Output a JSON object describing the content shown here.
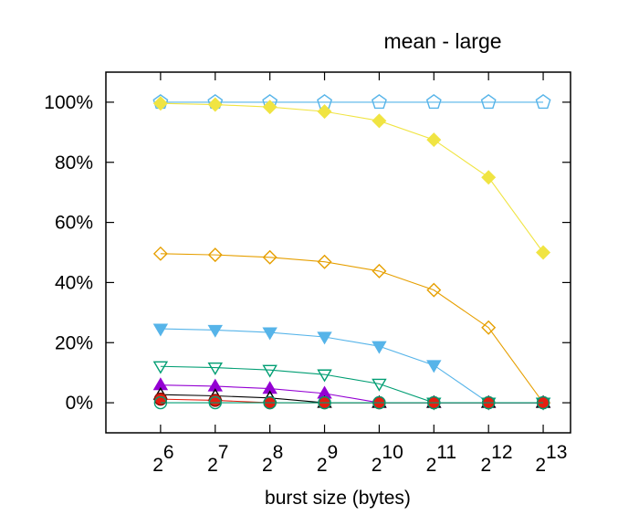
{
  "chart_data": {
    "type": "line",
    "title": "mean - large",
    "xlabel": "burst size (bytes)",
    "ylabel": "",
    "x": [
      6,
      7,
      8,
      9,
      10,
      11,
      12,
      13
    ],
    "x_tick_labels": [
      {
        "base": "2",
        "exp": "6"
      },
      {
        "base": "2",
        "exp": "7"
      },
      {
        "base": "2",
        "exp": "8"
      },
      {
        "base": "2",
        "exp": "9"
      },
      {
        "base": "2",
        "exp": "10"
      },
      {
        "base": "2",
        "exp": "11"
      },
      {
        "base": "2",
        "exp": "12"
      },
      {
        "base": "2",
        "exp": "13"
      }
    ],
    "y_ticks": [
      0,
      20,
      40,
      60,
      80,
      100
    ],
    "y_tick_labels": [
      "0%",
      "20%",
      "40%",
      "60%",
      "80%",
      "100%"
    ],
    "xlim": [
      5,
      13.5
    ],
    "ylim": [
      -10,
      110
    ],
    "grid": false,
    "series": [
      {
        "color": "#56b4e9",
        "marker": "pentagon-open",
        "values": [
          100,
          100,
          100,
          100,
          100,
          100,
          100,
          100
        ]
      },
      {
        "color": "#f0e442",
        "marker": "diamond-filled",
        "values": [
          99.6,
          99.2,
          98.4,
          96.9,
          93.8,
          87.5,
          75,
          50
        ]
      },
      {
        "color": "#e69f00",
        "marker": "diamond-open",
        "values": [
          49.6,
          49.2,
          48.4,
          46.9,
          43.8,
          37.5,
          25,
          0
        ]
      },
      {
        "color": "#56b4e9",
        "marker": "triangle-down-filled",
        "values": [
          24.6,
          24.2,
          23.4,
          21.9,
          18.8,
          12.5,
          0,
          0
        ]
      },
      {
        "color": "#009e73",
        "marker": "triangle-down-open",
        "values": [
          12.1,
          11.7,
          10.9,
          9.4,
          6.3,
          0,
          0,
          0
        ]
      },
      {
        "color": "#9400d3",
        "marker": "triangle-up-filled",
        "values": [
          5.9,
          5.5,
          4.7,
          3.1,
          0,
          0,
          0,
          0
        ]
      },
      {
        "color": "#000000",
        "marker": "triangle-up-open",
        "values": [
          2.7,
          2.3,
          1.6,
          0,
          0,
          0,
          0,
          0
        ]
      },
      {
        "color": "#e51e10",
        "marker": "circle-filled",
        "values": [
          1.2,
          0.8,
          0,
          0,
          0,
          0,
          0,
          0
        ]
      },
      {
        "color": "#009e73",
        "marker": "circle-open",
        "values": [
          0,
          0,
          0,
          0,
          0,
          0,
          0,
          0
        ]
      }
    ]
  }
}
